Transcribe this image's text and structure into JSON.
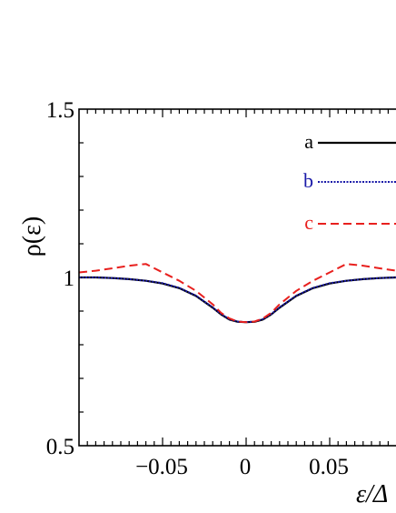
{
  "chart_data": {
    "type": "line",
    "title": "",
    "xlabel": "ε/Δ",
    "ylabel": "ρ(ε)",
    "xlim": [
      -0.1,
      0.1
    ],
    "ylim": [
      0.5,
      1.5
    ],
    "grid": false,
    "legend_position": "top-right",
    "x_ticks": [
      {
        "value": -0.05,
        "label": "−0.05"
      },
      {
        "value": 0,
        "label": "0"
      },
      {
        "value": 0.05,
        "label": "0.05"
      }
    ],
    "y_ticks": [
      {
        "value": 0.5,
        "label": "0.5"
      },
      {
        "value": 1,
        "label": "1"
      },
      {
        "value": 1.5,
        "label": "1.5"
      }
    ],
    "series": [
      {
        "name": "a",
        "color": "#000000",
        "style": "solid",
        "x": [
          -0.1,
          -0.09,
          -0.08,
          -0.07,
          -0.06,
          -0.05,
          -0.04,
          -0.03,
          -0.02,
          -0.015,
          -0.01,
          -0.005,
          0,
          0.005,
          0.01,
          0.015,
          0.02,
          0.03,
          0.04,
          0.05,
          0.06,
          0.07,
          0.08,
          0.09,
          0.1
        ],
        "y": [
          1.0,
          1.0,
          0.998,
          0.995,
          0.99,
          0.982,
          0.968,
          0.945,
          0.91,
          0.89,
          0.875,
          0.868,
          0.867,
          0.868,
          0.875,
          0.89,
          0.91,
          0.945,
          0.968,
          0.982,
          0.99,
          0.995,
          0.998,
          1.0,
          1.0
        ]
      },
      {
        "name": "b",
        "color": "#1a1aa8",
        "style": "dotted",
        "x": [
          -0.1,
          -0.09,
          -0.08,
          -0.07,
          -0.06,
          -0.05,
          -0.04,
          -0.03,
          -0.02,
          -0.015,
          -0.01,
          -0.005,
          0,
          0.005,
          0.01,
          0.015,
          0.02,
          0.03,
          0.04,
          0.05,
          0.06,
          0.07,
          0.08,
          0.09,
          0.1
        ],
        "y": [
          1.0,
          1.0,
          0.998,
          0.995,
          0.99,
          0.983,
          0.969,
          0.946,
          0.911,
          0.891,
          0.876,
          0.869,
          0.867,
          0.869,
          0.876,
          0.891,
          0.911,
          0.946,
          0.969,
          0.983,
          0.99,
          0.995,
          0.998,
          1.0,
          1.0
        ]
      },
      {
        "name": "c",
        "color": "#e8201e",
        "style": "dashed",
        "x": [
          -0.1,
          -0.09,
          -0.08,
          -0.07,
          -0.06,
          -0.05,
          -0.04,
          -0.03,
          -0.02,
          -0.015,
          -0.01,
          -0.005,
          0,
          0.005,
          0.01,
          0.015,
          0.02,
          0.03,
          0.04,
          0.05,
          0.06,
          0.07,
          0.08,
          0.09,
          0.1
        ],
        "y": [
          1.015,
          1.02,
          1.027,
          1.035,
          1.04,
          1.015,
          0.99,
          0.96,
          0.92,
          0.895,
          0.878,
          0.869,
          0.867,
          0.869,
          0.878,
          0.895,
          0.92,
          0.96,
          0.99,
          1.015,
          1.04,
          1.035,
          1.027,
          1.02,
          1.015
        ]
      }
    ]
  }
}
